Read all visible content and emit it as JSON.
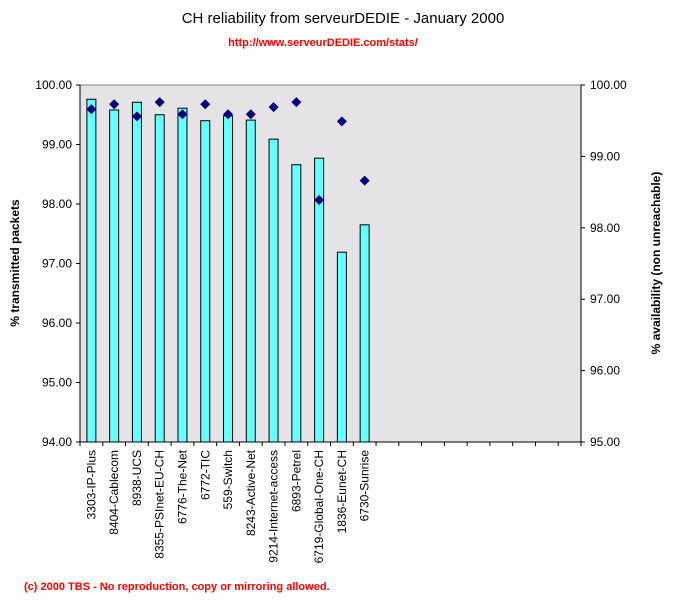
{
  "chart_data": {
    "type": "bar",
    "title": "CH reliability from serveurDEDIE - January 2000",
    "subtitle": "http://www.serveurDEDIE.com/stats/",
    "footer": "(c) 2000 TBS - No reproduction, copy or mirroring allowed.",
    "categories": [
      "3303-IP-Plus",
      "8404-Cablecom",
      "8938-UCS",
      "8355-PSInet-EU-CH",
      "6776-The-Net",
      "6772-TIC",
      "559-Switch",
      "8243-Active-Net",
      "9214-Internet-access",
      "6893-Petrel",
      "6719-Global-One-CH",
      "1836-Eunet-CH",
      "6730-Sunrise"
    ],
    "category_slots": 22,
    "series": [
      {
        "axis": "left",
        "kind": "bar",
        "color": "#66FFFF",
        "values": [
          99.76,
          99.58,
          99.71,
          99.5,
          99.61,
          99.4,
          99.48,
          99.41,
          99.09,
          98.66,
          98.77,
          97.19,
          97.65
        ]
      },
      {
        "axis": "right",
        "kind": "scatter",
        "marker": "diamond",
        "color": "#000080",
        "values": [
          99.66,
          99.73,
          99.56,
          99.76,
          99.59,
          99.73,
          99.59,
          99.59,
          99.69,
          99.76,
          98.39,
          99.49,
          98.66
        ]
      }
    ],
    "ylabel": "% transmitted packets",
    "ylabel_right": "% availability (non unreachable)",
    "ylim": [
      94,
      100
    ],
    "ylim_right": [
      95,
      100
    ],
    "yticks": [
      "94.00",
      "95.00",
      "96.00",
      "97.00",
      "98.00",
      "99.00",
      "100.00"
    ],
    "yticks_right": [
      "95.00",
      "96.00",
      "97.00",
      "98.00",
      "99.00",
      "100.00"
    ],
    "plot_background": "#E6E3E6",
    "grid": false,
    "legend": "none"
  }
}
